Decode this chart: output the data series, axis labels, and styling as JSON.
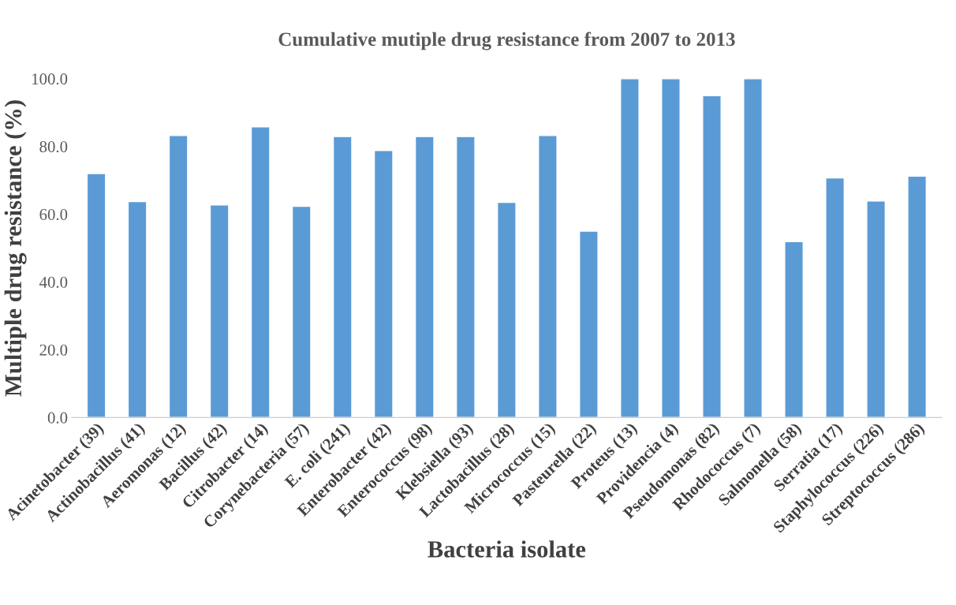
{
  "chart_data": {
    "type": "bar",
    "title": "Cumulative mutiple drug resistance from 2007 to 2013",
    "xlabel": "Bacteria isolate",
    "ylabel": "Multiple drug resistance (%)",
    "categories": [
      "Acinetobacter (39)",
      "Actinobacillus (41)",
      "Aeromonas (12)",
      "Bacillus (42)",
      "Citrobacter (14)",
      "Corynebacteria (57)",
      "E. coli (241)",
      "Enterobacter (42)",
      "Enterococcus (98)",
      "Klebsiella (93)",
      "Lactobacillus (28)",
      "Micrococcus (15)",
      "Pasteurella (22)",
      "Proteus (13)",
      "Providencia (4)",
      "Pseudomonas (82)",
      "Rhodococcus (7)",
      "Salmonella (58)",
      "Serratia (17)",
      "Staphylococcus (226)",
      "Streptococcus (286)"
    ],
    "values": [
      72,
      63.7,
      83.2,
      62.7,
      85.8,
      62.3,
      82.9,
      78.8,
      82.9,
      82.9,
      63.5,
      83.2,
      55,
      100,
      100,
      95,
      100,
      51.9,
      70.7,
      63.9,
      71.2
    ],
    "color": "#5b9bd5",
    "ylim": [
      0,
      100
    ],
    "yticks": [
      {
        "value": 0,
        "label": "0.0"
      },
      {
        "value": 20,
        "label": "20.0"
      },
      {
        "value": 40,
        "label": "40.0"
      },
      {
        "value": 60,
        "label": "60.0"
      },
      {
        "value": 80,
        "label": "80.0"
      },
      {
        "value": 100,
        "label": "100.0"
      }
    ],
    "grid": false,
    "legend": false
  }
}
